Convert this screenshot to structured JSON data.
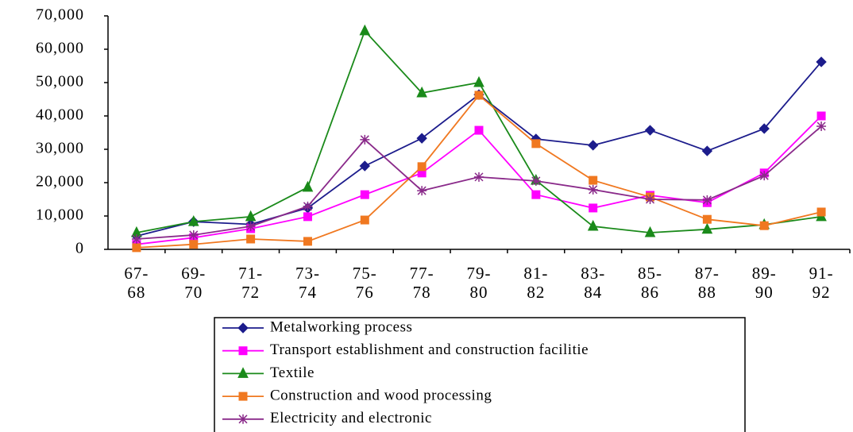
{
  "chart_data": {
    "type": "line",
    "categories": [
      "67-\n68",
      "69-\n70",
      "71-\n72",
      "73-\n74",
      "75-\n76",
      "77-\n78",
      "79-\n80",
      "81-\n82",
      "83-\n84",
      "85-\n86",
      "87-\n88",
      "89-\n90",
      "91-\n92"
    ],
    "series": [
      {
        "name": "Metalworking process",
        "color": "#1c1c8c",
        "marker": "diamond",
        "values": [
          4000,
          8300,
          7500,
          12400,
          25000,
          33300,
          46400,
          33100,
          31200,
          35700,
          29500,
          36200,
          56200
        ]
      },
      {
        "name": "Transport establishment and construction facilitie",
        "color": "#ff00ff",
        "marker": "square",
        "values": [
          1500,
          3500,
          6200,
          9800,
          16400,
          22900,
          35700,
          16400,
          12400,
          16200,
          14000,
          22900,
          40000
        ]
      },
      {
        "name": "Textile",
        "color": "#1a8a1a",
        "marker": "triangle",
        "values": [
          5000,
          8300,
          9800,
          18600,
          65500,
          46900,
          50000,
          20700,
          6900,
          5000,
          6000,
          7400,
          9800
        ]
      },
      {
        "name": "Construction and wood processing",
        "color": "#f07820",
        "marker": "square",
        "values": [
          500,
          1500,
          3100,
          2400,
          8800,
          24800,
          46200,
          31700,
          20700,
          15700,
          9000,
          7100,
          11200
        ]
      },
      {
        "name": "Electricity and electronic",
        "color": "#8a2a8a",
        "marker": "star",
        "values": [
          3100,
          4300,
          6900,
          12900,
          32900,
          17600,
          21700,
          20500,
          17900,
          15000,
          14800,
          22100,
          36900
        ]
      }
    ],
    "ylim": [
      0,
      70000
    ],
    "yticks": [
      0,
      {
        "value": 10000,
        "label": "10,000"
      },
      {
        "value": 20000,
        "label": "20,000"
      },
      {
        "value": 30000,
        "label": "30,000"
      },
      {
        "value": 40000,
        "label": "40,000"
      },
      {
        "value": 50000,
        "label": "50,000"
      },
      {
        "value": 60000,
        "label": "60,000"
      },
      {
        "value": 70000,
        "label": "70,000"
      }
    ],
    "grid": false
  }
}
